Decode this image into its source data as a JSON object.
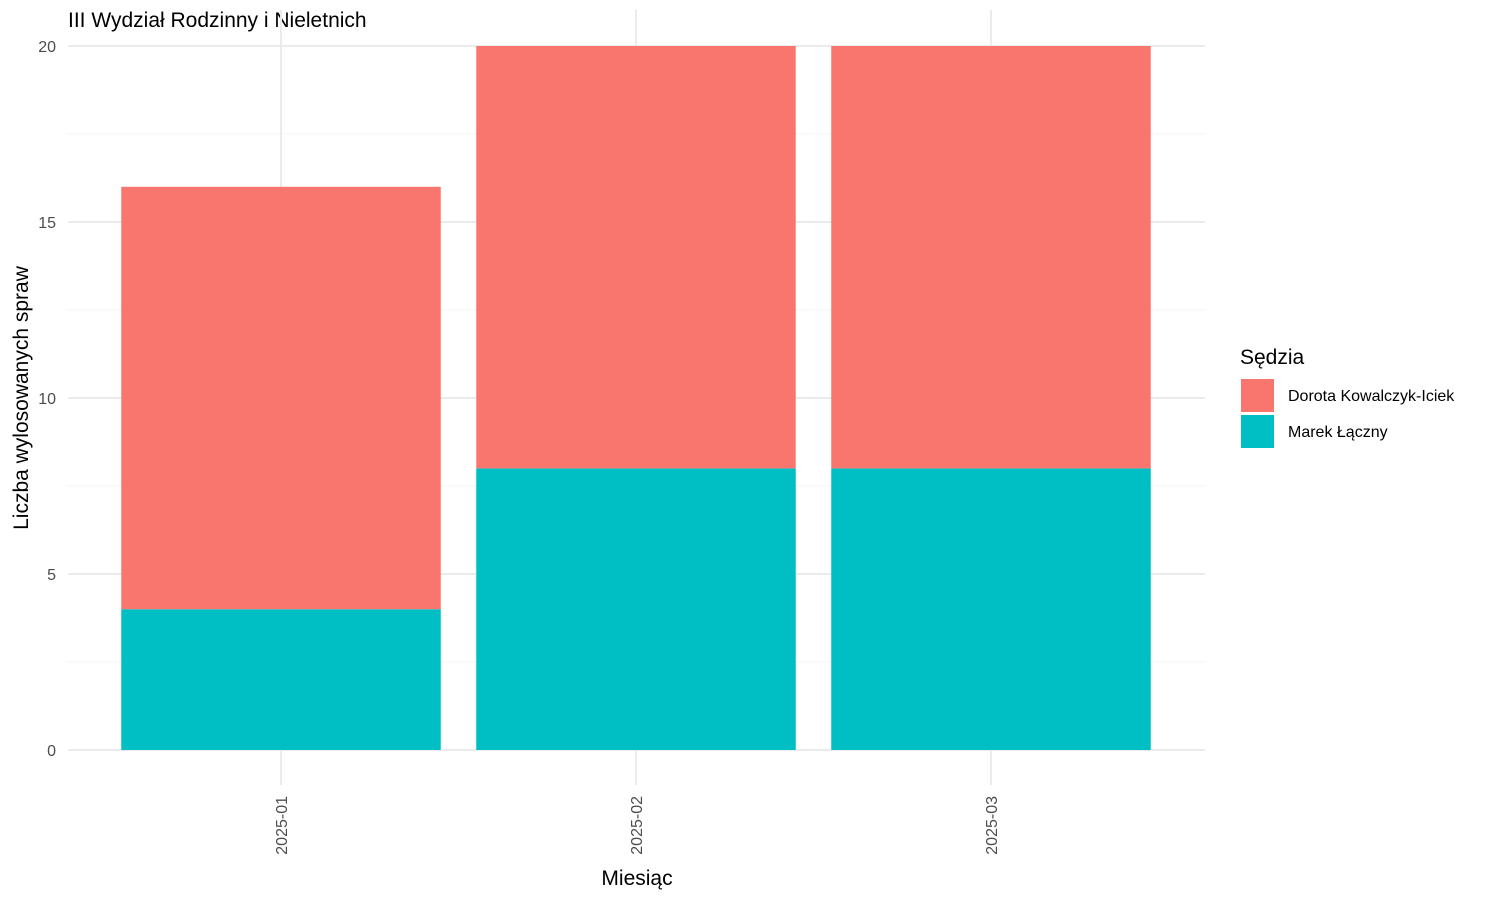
{
  "chart_data": {
    "type": "bar",
    "stacked": true,
    "title": "III Wydział Rodzinny i Nieletnich",
    "xlabel": "Miesiąc",
    "ylabel": "Liczba wylosowanych spraw",
    "categories": [
      "2025-01",
      "2025-02",
      "2025-03"
    ],
    "ylim": [
      0,
      20
    ],
    "yticks": [
      0,
      5,
      10,
      15,
      20
    ],
    "grid": true,
    "legend": {
      "title": "Sędzia",
      "placement": "right"
    },
    "series": [
      {
        "name": "Marek Łączny",
        "values": [
          4,
          8,
          8
        ],
        "color": "#00BFC4"
      },
      {
        "name": "Dorota Kowalczyk-Iciek",
        "values": [
          12,
          12,
          12
        ],
        "color": "#F8766D"
      }
    ],
    "legend_order": [
      "Dorota Kowalczyk-Iciek",
      "Marek Łączny"
    ]
  }
}
